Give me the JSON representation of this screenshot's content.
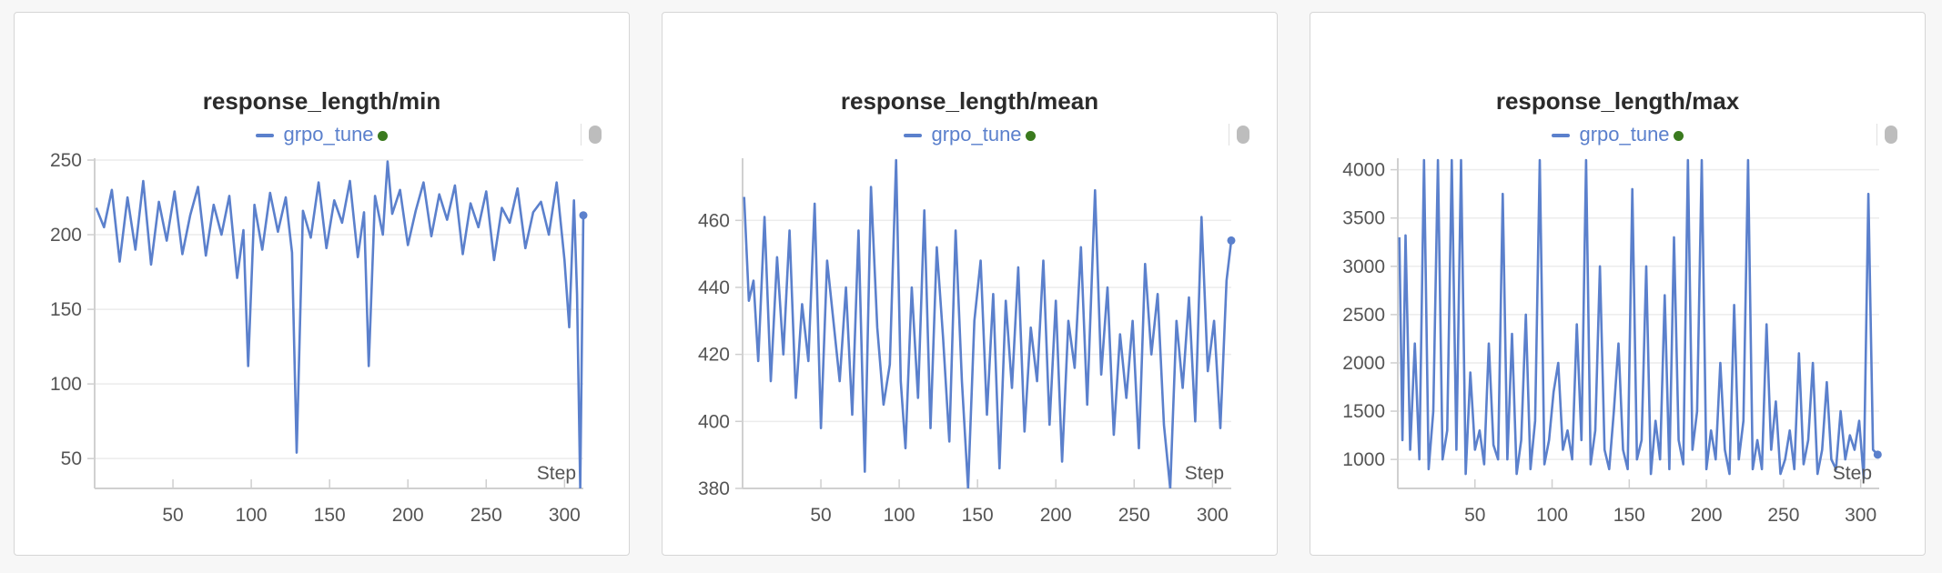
{
  "panels": [
    {
      "title": "response_length/min",
      "legend": "grpo_tune",
      "chart_data": {
        "type": "line",
        "title": "response_length/min",
        "xlabel": "Step",
        "xlim": [
          0,
          312
        ],
        "ylim": [
          30,
          250
        ],
        "xticks": [
          50,
          100,
          150,
          200,
          250,
          300
        ],
        "yticks": [
          50,
          100,
          150,
          200,
          250
        ],
        "grid": true,
        "legend_position": "top",
        "color": "#5b80cc",
        "series": [
          {
            "name": "grpo_tune",
            "x": [
              1,
              6,
              11,
              16,
              21,
              26,
              31,
              36,
              41,
              46,
              51,
              56,
              61,
              66,
              71,
              76,
              81,
              86,
              91,
              95,
              98,
              102,
              107,
              112,
              117,
              122,
              126,
              129,
              133,
              138,
              143,
              148,
              153,
              158,
              163,
              168,
              172,
              175,
              179,
              184,
              187,
              190,
              195,
              200,
              205,
              210,
              215,
              220,
              225,
              230,
              235,
              240,
              245,
              250,
              255,
              260,
              265,
              270,
              275,
              280,
              285,
              290,
              295,
              300,
              303,
              306,
              308,
              310,
              312
            ],
            "y": [
              218,
              205,
              230,
              182,
              225,
              190,
              236,
              180,
              222,
              196,
              229,
              187,
              213,
              232,
              186,
              220,
              200,
              226,
              171,
              203,
              112,
              220,
              190,
              228,
              202,
              225,
              188,
              54,
              216,
              198,
              235,
              191,
              223,
              208,
              236,
              185,
              215,
              112,
              226,
              200,
              249,
              214,
              230,
              193,
              216,
              235,
              199,
              227,
              210,
              233,
              187,
              221,
              205,
              229,
              183,
              218,
              208,
              231,
              191,
              215,
              222,
              200,
              235,
              183,
              138,
              223,
              160,
              30,
              213
            ]
          }
        ]
      }
    },
    {
      "title": "response_length/mean",
      "legend": "grpo_tune",
      "chart_data": {
        "type": "line",
        "title": "response_length/mean",
        "xlabel": "Step",
        "xlim": [
          0,
          312
        ],
        "ylim": [
          380,
          478
        ],
        "xticks": [
          50,
          100,
          150,
          200,
          250,
          300
        ],
        "yticks": [
          380,
          400,
          420,
          440,
          460
        ],
        "grid": true,
        "legend_position": "top",
        "color": "#5b80cc",
        "series": [
          {
            "name": "grpo_tune",
            "x": [
              1,
              4,
              7,
              10,
              14,
              18,
              22,
              26,
              30,
              34,
              38,
              42,
              46,
              50,
              54,
              58,
              62,
              66,
              70,
              74,
              78,
              82,
              86,
              90,
              94,
              98,
              101,
              104,
              108,
              112,
              116,
              120,
              124,
              128,
              132,
              136,
              140,
              144,
              148,
              152,
              156,
              160,
              164,
              168,
              172,
              176,
              180,
              184,
              188,
              192,
              196,
              200,
              204,
              208,
              212,
              216,
              220,
              225,
              229,
              233,
              237,
              241,
              245,
              249,
              253,
              257,
              261,
              265,
              269,
              273,
              277,
              281,
              285,
              289,
              293,
              297,
              301,
              305,
              309,
              312
            ],
            "y": [
              467,
              436,
              442,
              418,
              461,
              412,
              449,
              420,
              457,
              407,
              435,
              418,
              465,
              398,
              448,
              430,
              412,
              440,
              402,
              457,
              385,
              470,
              428,
              405,
              417,
              478,
              412,
              392,
              440,
              407,
              463,
              398,
              452,
              425,
              394,
              457,
              412,
              380,
              430,
              448,
              402,
              438,
              386,
              436,
              410,
              446,
              397,
              428,
              412,
              448,
              399,
              436,
              388,
              430,
              416,
              452,
              405,
              469,
              414,
              440,
              396,
              426,
              407,
              430,
              392,
              447,
              420,
              438,
              399,
              380,
              430,
              410,
              437,
              400,
              461,
              415,
              430,
              398,
              442,
              454
            ]
          }
        ]
      }
    },
    {
      "title": "response_length/max",
      "legend": "grpo_tune",
      "chart_data": {
        "type": "line",
        "title": "response_length/max",
        "xlabel": "Step",
        "xlim": [
          0,
          312
        ],
        "ylim": [
          700,
          4100
        ],
        "xticks": [
          50,
          100,
          150,
          200,
          250,
          300
        ],
        "yticks": [
          1000,
          1500,
          2000,
          2500,
          3000,
          3500,
          4000
        ],
        "grid": true,
        "legend_position": "top",
        "color": "#5b80cc",
        "series": [
          {
            "name": "grpo_tune",
            "x": [
              1,
              3,
              5,
              8,
              11,
              14,
              17,
              20,
              23,
              26,
              29,
              32,
              35,
              38,
              41,
              44,
              47,
              50,
              53,
              56,
              59,
              62,
              65,
              68,
              71,
              74,
              77,
              80,
              83,
              86,
              89,
              92,
              95,
              98,
              101,
              104,
              107,
              110,
              113,
              116,
              119,
              122,
              125,
              128,
              131,
              134,
              137,
              140,
              143,
              146,
              149,
              152,
              155,
              158,
              161,
              164,
              167,
              170,
              173,
              176,
              179,
              182,
              185,
              188,
              191,
              194,
              197,
              200,
              203,
              206,
              209,
              212,
              215,
              218,
              221,
              224,
              227,
              230,
              233,
              236,
              239,
              242,
              245,
              248,
              251,
              254,
              257,
              260,
              263,
              266,
              269,
              272,
              275,
              278,
              281,
              284,
              287,
              290,
              293,
              296,
              299,
              302,
              305,
              308,
              311
            ],
            "y": [
              3300,
              1200,
              3320,
              1100,
              2200,
              1000,
              4100,
              900,
              1500,
              4100,
              1000,
              1300,
              4100,
              1100,
              4100,
              850,
              1900,
              1100,
              1300,
              950,
              2200,
              1150,
              1000,
              3750,
              1000,
              2300,
              850,
              1200,
              2500,
              900,
              1400,
              4100,
              950,
              1200,
              1700,
              2000,
              1100,
              1300,
              1000,
              2400,
              1200,
              4100,
              950,
              1300,
              3000,
              1100,
              900,
              1500,
              2200,
              1100,
              900,
              3800,
              1000,
              1200,
              3000,
              850,
              1400,
              1000,
              2700,
              900,
              3300,
              1200,
              950,
              4100,
              1100,
              1500,
              4100,
              900,
              1300,
              1000,
              2000,
              1100,
              850,
              2600,
              1000,
              1400,
              4100,
              900,
              1200,
              900,
              2400,
              1100,
              1600,
              850,
              1000,
              1300,
              900,
              2100,
              950,
              1200,
              2000,
              850,
              1100,
              1800,
              1000,
              900,
              1500,
              1000,
              1250,
              1100,
              1400,
              800,
              3750,
              1100,
              1050
            ]
          }
        ]
      }
    }
  ]
}
